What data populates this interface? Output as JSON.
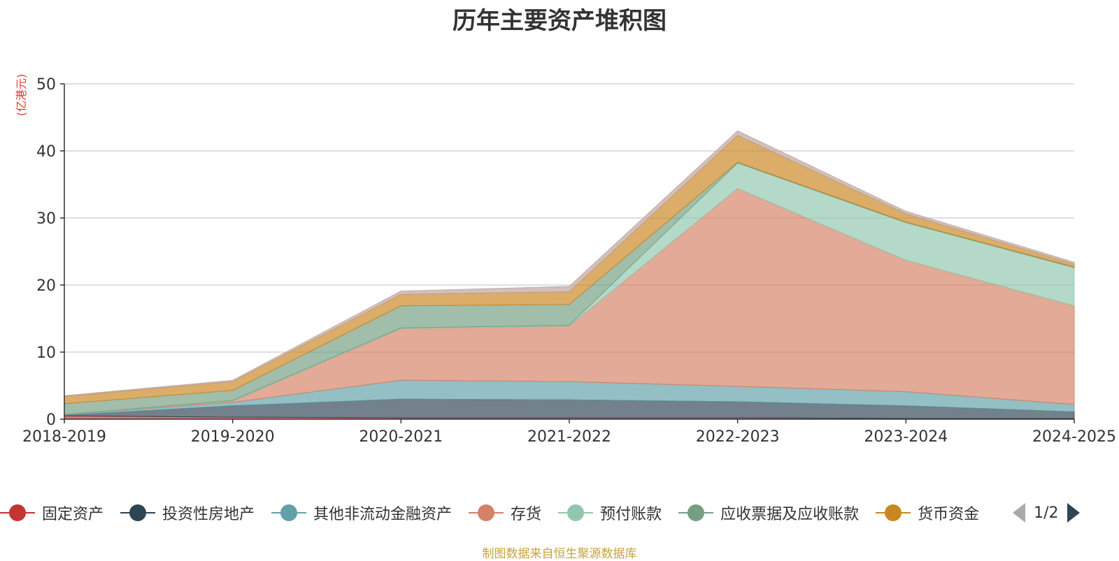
{
  "chart_data": {
    "type": "area",
    "title": "历年主要资产堆积图",
    "ylabel": "(亿港元)",
    "ylim": [
      0,
      50
    ],
    "yticks": [
      0,
      10,
      20,
      30,
      40,
      50
    ],
    "grid": true,
    "stacked": true,
    "categories": [
      "2018-2019",
      "2019-2020",
      "2020-2021",
      "2021-2022",
      "2022-2023",
      "2023-2024",
      "2024-2025"
    ],
    "series": [
      {
        "name": "固定资产",
        "color": "#c23531",
        "values": [
          0.5,
          0.3,
          0.2,
          0.2,
          0.2,
          0.1,
          0.1
        ]
      },
      {
        "name": "投资性房地产",
        "color": "#2f4554",
        "values": [
          0.1,
          1.7,
          2.8,
          2.7,
          2.4,
          1.9,
          1.0
        ]
      },
      {
        "name": "其他非流动金融资产",
        "color": "#61a0a8",
        "values": [
          0.1,
          0.5,
          2.8,
          2.7,
          2.3,
          2.1,
          1.1
        ]
      },
      {
        "name": "存货",
        "color": "#d48265",
        "values": [
          0.0,
          0.2,
          7.7,
          8.3,
          29.5,
          19.6,
          14.7
        ]
      },
      {
        "name": "预付账款",
        "color": "#91c7ae",
        "values": [
          0.0,
          0.1,
          0.1,
          0.1,
          3.8,
          5.6,
          5.7
        ]
      },
      {
        "name": "应收票据及应收账款",
        "color": "#749f83",
        "values": [
          1.6,
          1.5,
          3.3,
          3.1,
          0.1,
          0.1,
          0.1
        ]
      },
      {
        "name": "货币资金",
        "color": "#ca8622",
        "values": [
          1.1,
          1.3,
          1.7,
          1.9,
          4.0,
          1.2,
          0.4
        ]
      },
      {
        "name": "",
        "color": "#bda29a",
        "values": [
          0.1,
          0.2,
          0.5,
          0.8,
          0.7,
          0.4,
          0.3
        ]
      }
    ]
  },
  "legend": {
    "pager": "1/2"
  },
  "source_note": "制图数据来自恒生聚源数据库"
}
